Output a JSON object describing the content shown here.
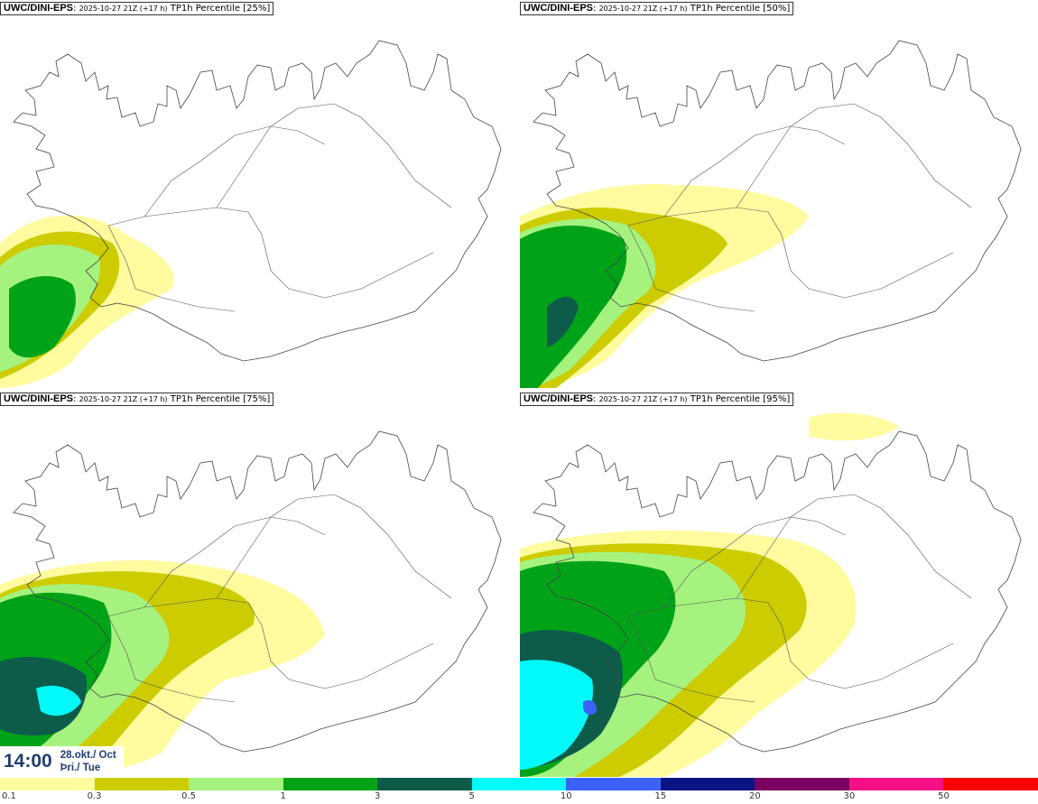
{
  "panels": [
    {
      "model": "UWC/DINI-EPS",
      "run": "2025-10-27 21Z (+17 h)",
      "param": "TP1h Percentile [25%]"
    },
    {
      "model": "UWC/DINI-EPS",
      "run": "2025-10-27 21Z (+17 h)",
      "param": "TP1h Percentile [50%]"
    },
    {
      "model": "UWC/DINI-EPS",
      "run": "2025-10-27 21Z (+17 h)",
      "param": "TP1h Percentile [75%]"
    },
    {
      "model": "UWC/DINI-EPS",
      "run": "2025-10-27 21Z (+17 h)",
      "param": "TP1h Percentile [95%]"
    }
  ],
  "valid_time": {
    "time": "14:00",
    "date_line": "28.okt./ Oct",
    "day_line": "Þri./ Tue"
  },
  "colorbar": {
    "colors": [
      "#fffb9e",
      "#cccc00",
      "#a6f27f",
      "#00a317",
      "#0d5c4a",
      "#00fafa",
      "#3b62f5",
      "#0a1582",
      "#7a0063",
      "#f50f85",
      "#fa0000"
    ],
    "labels": [
      "0.1",
      "0.3",
      "0.5",
      "1",
      "3",
      "5",
      "10",
      "15",
      "20",
      "30",
      "50"
    ]
  }
}
